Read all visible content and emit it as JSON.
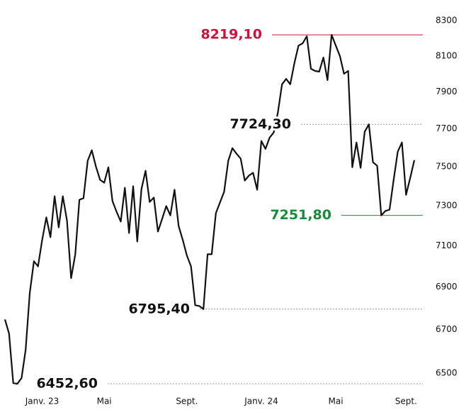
{
  "chart_data": {
    "type": "line",
    "log_scale": true,
    "categories": [
      null,
      null,
      null,
      null,
      null,
      null,
      null,
      null,
      null,
      "Janv. 23",
      null,
      null,
      null,
      null,
      null,
      null,
      null,
      null,
      null,
      null,
      null,
      null,
      null,
      null,
      "Mai",
      null,
      null,
      null,
      null,
      null,
      null,
      null,
      null,
      null,
      null,
      null,
      null,
      null,
      null,
      null,
      null,
      null,
      null,
      null,
      "Sept.",
      null,
      null,
      null,
      null,
      null,
      null,
      null,
      null,
      null,
      null,
      null,
      null,
      null,
      null,
      null,
      null,
      null,
      "Janv. 24",
      null,
      null,
      null,
      null,
      null,
      null,
      null,
      null,
      null,
      null,
      null,
      null,
      null,
      null,
      null,
      null,
      null,
      "Mai",
      null,
      null,
      null,
      null,
      null,
      null,
      null,
      null,
      null,
      null,
      null,
      null,
      null,
      null,
      null,
      null,
      "Sept.",
      null,
      null
    ],
    "series": [
      {
        "color": "#111111",
        "values": [
          6747,
          6681,
          6456,
          6452.6,
          6478,
          6606,
          6871,
          7025,
          7000,
          7129,
          7242,
          7143,
          7349,
          7192,
          7349,
          7225,
          6943,
          7059,
          7331,
          7339,
          7532,
          7587,
          7502,
          7433,
          7418,
          7498,
          7324,
          7270,
          7221,
          7392,
          7164,
          7400,
          7122,
          7385,
          7480,
          7320,
          7342,
          7171,
          7234,
          7299,
          7252,
          7382,
          7199,
          7129,
          7052,
          7000,
          6814,
          6810,
          6795.4,
          7059,
          7059,
          7263,
          7317,
          7371,
          7532,
          7598,
          7569,
          7543,
          7429,
          7455,
          7469,
          7382,
          7636,
          7594,
          7654,
          7681,
          7787,
          7942,
          7972,
          7942,
          8060,
          8158,
          8171,
          8211,
          8028,
          8016,
          8012,
          8091,
          7965,
          8219.1,
          8158,
          8099,
          8000,
          8016,
          7498,
          7628,
          7495,
          7685,
          7724.3,
          7524,
          7506,
          7251.8,
          7274,
          7281,
          7433,
          7580,
          7628,
          7356,
          7443,
          7535
        ]
      }
    ],
    "ylim": [
      6440,
      8420
    ],
    "yticks": [
      6500,
      6700,
      6900,
      7100,
      7300,
      7500,
      7700,
      7900,
      8100,
      8300
    ],
    "annotations": [
      {
        "label": "8219,10",
        "value": 8219.1,
        "color": "#d0103a",
        "style": "solid"
      },
      {
        "label": "7724,30",
        "value": 7724.3,
        "color": "#111111",
        "style": "dotted"
      },
      {
        "label": "7251,80",
        "value": 7251.8,
        "color": "#1a8a3a",
        "style": "solid"
      },
      {
        "label": "6795,40",
        "value": 6795.4,
        "color": "#111111",
        "style": "dotted"
      },
      {
        "label": "6452,60",
        "value": 6452.6,
        "color": "#111111",
        "style": "dotted"
      }
    ]
  }
}
